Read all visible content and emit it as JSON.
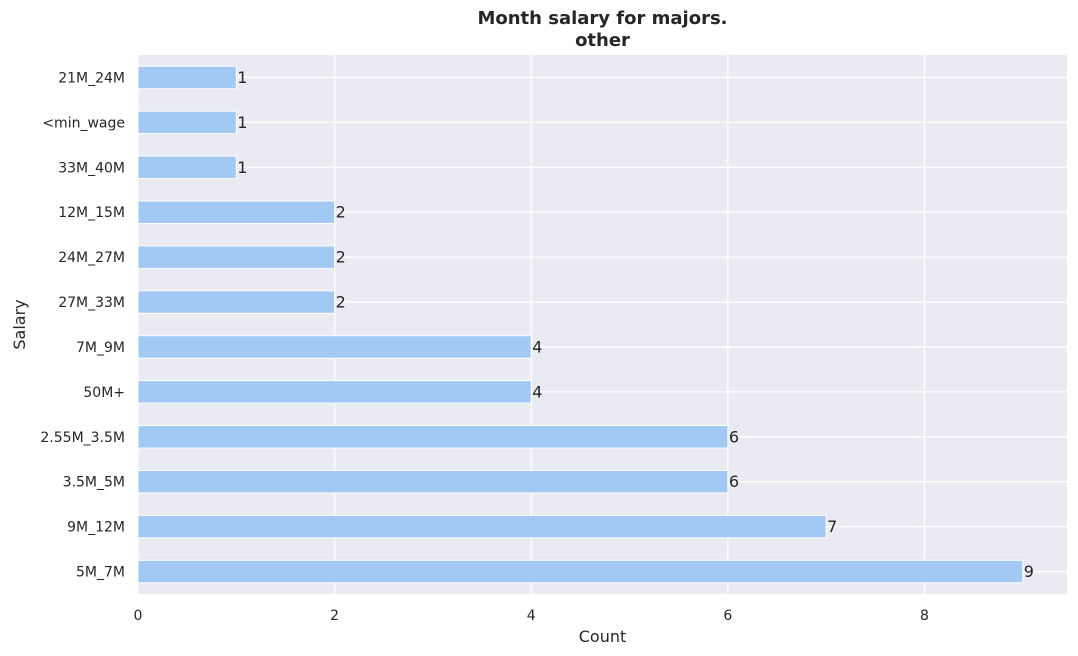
{
  "chart_data": {
    "type": "bar",
    "orientation": "horizontal",
    "title": "Month salary for majors.",
    "subtitle": "other",
    "xlabel": "Count",
    "ylabel": "Salary",
    "categories": [
      "21M_24M",
      "<min_wage",
      "33M_40M",
      "12M_15M",
      "24M_27M",
      "27M_33M",
      "7M_9M",
      "50M+",
      "2.55M_3.5M",
      "3.5M_5M",
      "9M_12M",
      "5M_7M"
    ],
    "values": [
      1,
      1,
      1,
      2,
      2,
      2,
      4,
      4,
      6,
      6,
      7,
      9
    ],
    "xlim": [
      0,
      9.45
    ],
    "xticks": [
      "0",
      "2",
      "4",
      "6",
      "8"
    ],
    "grid": true,
    "data_labels": true,
    "colors": {
      "bar": "#a1c9f4",
      "background": "#eaeaf2",
      "grid": "#ffffff",
      "text": "#262626"
    }
  }
}
